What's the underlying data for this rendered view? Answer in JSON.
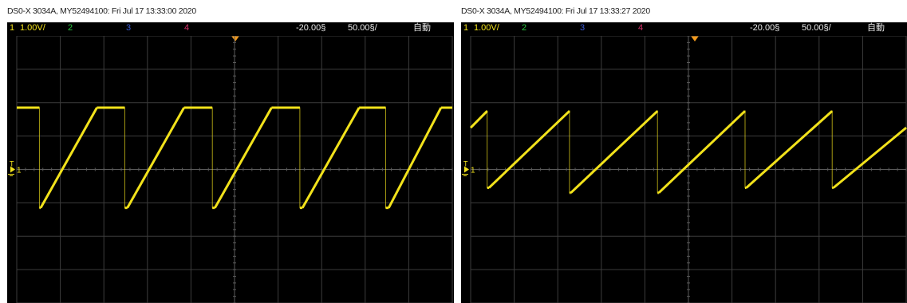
{
  "colors": {
    "background": "#000000",
    "grid": "#3c3c3c",
    "channel_1": "#f2e21b",
    "channel_2": "#29c53e",
    "channel_3": "#3b5bd6",
    "channel_4": "#d7306a",
    "trigger_marker": "#f39a1c"
  },
  "screens": [
    {
      "caption": "DS0-X 3034A, MY52494100: Fri Jul 17 13:33:00 2020",
      "status": {
        "ch1_number": "1",
        "ch1_scale": "1.00V/",
        "ch2_number": "2",
        "ch3_number": "3",
        "ch4_number": "4",
        "trigger_delay": "-20.00§",
        "timebase": "50.00§/",
        "trigger_mode": "自動"
      },
      "ground_marker": "1",
      "trigger_level_marker": "T"
    },
    {
      "caption": "DS0-X 3034A, MY52494100: Fri Jul 17 13:33:27 2020",
      "status": {
        "ch1_number": "1",
        "ch1_scale": "1.00V/",
        "ch2_number": "2",
        "ch3_number": "3",
        "ch4_number": "4",
        "trigger_delay": "-20.00§",
        "timebase": "50.00§/",
        "trigger_mode": "自動"
      },
      "ground_marker": "1",
      "trigger_level_marker": "T"
    }
  ],
  "chart_data": [
    {
      "type": "line",
      "grid": true,
      "xlim": [
        0,
        10
      ],
      "ylim": [
        -4,
        4
      ],
      "series": [
        {
          "x": [
            0,
            0.52,
            0.52,
            0.55,
            1.84,
            2.48,
            2.48,
            2.54,
            3.84,
            4.49,
            4.49,
            4.55,
            5.85,
            6.5,
            6.5,
            6.56,
            7.86,
            8.47,
            8.47,
            8.54,
            9.74,
            10.0
          ],
          "y": [
            1.85,
            1.85,
            -1.15,
            -1.15,
            1.85,
            1.85,
            -1.15,
            -1.15,
            1.85,
            1.85,
            -1.15,
            -1.15,
            1.85,
            1.85,
            -1.15,
            -1.15,
            1.85,
            1.85,
            -1.15,
            -1.15,
            1.85,
            1.85
          ]
        }
      ]
    },
    {
      "type": "line",
      "grid": true,
      "xlim": [
        0,
        10
      ],
      "ylim": [
        -4,
        4
      ],
      "series": [
        {
          "x": [
            0,
            0.38,
            0.38,
            0.42,
            2.27,
            2.27,
            2.3,
            4.29,
            4.29,
            4.32,
            6.3,
            6.3,
            6.33,
            8.3,
            8.3,
            8.33,
            10.0
          ],
          "y": [
            1.25,
            1.75,
            -0.55,
            -0.55,
            1.75,
            -0.7,
            -0.7,
            1.75,
            -0.7,
            -0.7,
            1.75,
            -0.55,
            -0.55,
            1.75,
            -0.55,
            -0.55,
            1.25
          ]
        }
      ]
    }
  ]
}
